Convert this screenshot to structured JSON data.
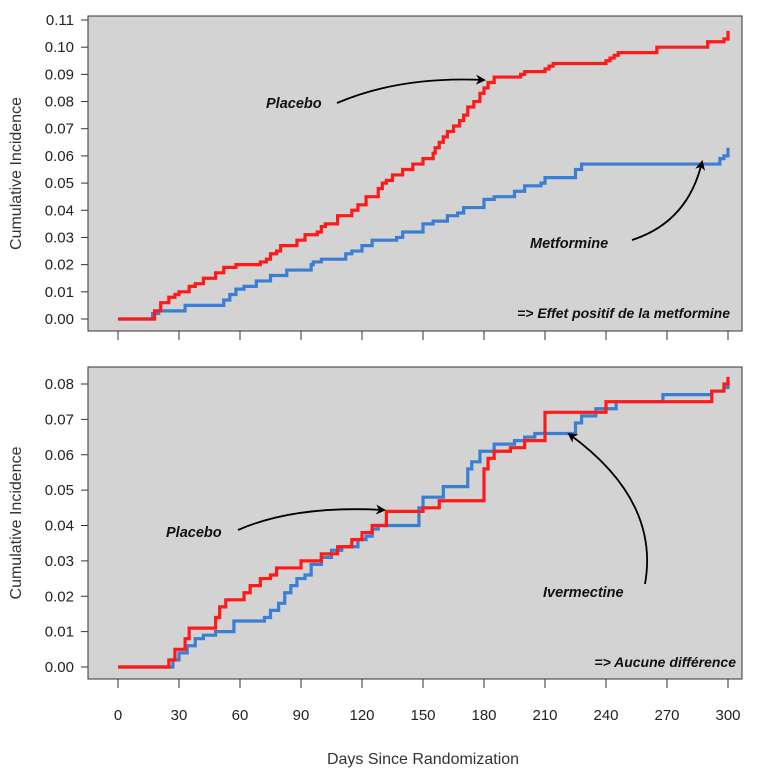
{
  "chart_data": [
    {
      "type": "line",
      "step": true,
      "ylabel": "Cumulative Incidence",
      "xlabel": "",
      "xlim": [
        0,
        300
      ],
      "ylim": [
        0,
        0.11
      ],
      "yticks": [
        "0.00",
        "0.01",
        "0.02",
        "0.03",
        "0.04",
        "0.05",
        "0.06",
        "0.07",
        "0.08",
        "0.09",
        "0.10",
        "0.11"
      ],
      "xticks": [
        0,
        30,
        60,
        90,
        120,
        150,
        180,
        210,
        240,
        270,
        300
      ],
      "xtick_labels_shown": false,
      "background": "#d3d3d3",
      "series": [
        {
          "name": "Placebo",
          "color": "#ff1a1a",
          "x": [
            0,
            18,
            21,
            25,
            28,
            30,
            35,
            38,
            42,
            48,
            52,
            58,
            70,
            73,
            75,
            78,
            80,
            88,
            92,
            98,
            100,
            102,
            108,
            115,
            118,
            120,
            122,
            128,
            130,
            132,
            135,
            140,
            145,
            150,
            155,
            156,
            158,
            160,
            162,
            165,
            168,
            170,
            172,
            175,
            178,
            180,
            182,
            185,
            195,
            198,
            200,
            210,
            212,
            214,
            240,
            242,
            244,
            246,
            265,
            290,
            298,
            300
          ],
          "y": [
            0,
            0.003,
            0.006,
            0.008,
            0.009,
            0.01,
            0.012,
            0.013,
            0.015,
            0.017,
            0.019,
            0.02,
            0.021,
            0.022,
            0.024,
            0.025,
            0.027,
            0.029,
            0.031,
            0.032,
            0.034,
            0.035,
            0.038,
            0.04,
            0.042,
            0.042,
            0.045,
            0.048,
            0.05,
            0.051,
            0.053,
            0.055,
            0.057,
            0.059,
            0.061,
            0.063,
            0.065,
            0.067,
            0.069,
            0.071,
            0.073,
            0.075,
            0.078,
            0.08,
            0.083,
            0.085,
            0.087,
            0.089,
            0.089,
            0.09,
            0.091,
            0.092,
            0.093,
            0.094,
            0.095,
            0.096,
            0.097,
            0.098,
            0.1,
            0.102,
            0.103,
            0.106
          ]
        },
        {
          "name": "Metformine",
          "color": "#3a7fd5",
          "x": [
            0,
            17,
            20,
            33,
            52,
            55,
            58,
            62,
            68,
            75,
            83,
            95,
            96,
            100,
            112,
            115,
            120,
            125,
            137,
            140,
            150,
            155,
            162,
            167,
            170,
            180,
            185,
            195,
            200,
            208,
            210,
            225,
            228,
            296,
            298,
            300
          ],
          "y": [
            0,
            0.002,
            0.003,
            0.005,
            0.007,
            0.009,
            0.011,
            0.012,
            0.014,
            0.016,
            0.018,
            0.02,
            0.021,
            0.022,
            0.024,
            0.025,
            0.027,
            0.029,
            0.03,
            0.032,
            0.035,
            0.036,
            0.038,
            0.039,
            0.041,
            0.044,
            0.045,
            0.047,
            0.049,
            0.05,
            0.052,
            0.055,
            0.057,
            0.059,
            0.06,
            0.063
          ]
        }
      ],
      "annotations": [
        {
          "text": "Placebo",
          "target": [
            182,
            0.088
          ]
        },
        {
          "text": "Metformine",
          "target": [
            288,
            0.059
          ]
        }
      ],
      "conclusion": "=> Effet positif de la metformine"
    },
    {
      "type": "line",
      "step": true,
      "ylabel": "Cumulative Incidence",
      "xlabel": "Days Since Randomization",
      "xlim": [
        0,
        300
      ],
      "ylim": [
        0,
        0.08
      ],
      "yticks": [
        "0.00",
        "0.01",
        "0.02",
        "0.03",
        "0.04",
        "0.05",
        "0.06",
        "0.07",
        "0.08"
      ],
      "xticks": [
        0,
        30,
        60,
        90,
        120,
        150,
        180,
        210,
        240,
        270,
        300
      ],
      "xtick_labels_shown": true,
      "background": "#d3d3d3",
      "series": [
        {
          "name": "Placebo",
          "color": "#ff1a1a",
          "x": [
            0,
            25,
            28,
            33,
            35,
            40,
            48,
            50,
            53,
            58,
            62,
            65,
            70,
            75,
            78,
            82,
            90,
            95,
            100,
            108,
            112,
            115,
            120,
            125,
            132,
            148,
            150,
            158,
            178,
            180,
            182,
            185,
            193,
            200,
            206,
            210,
            222,
            240,
            245,
            252,
            268,
            292,
            298,
            300
          ],
          "y": [
            0,
            0.002,
            0.005,
            0.008,
            0.011,
            0.011,
            0.014,
            0.017,
            0.019,
            0.019,
            0.021,
            0.023,
            0.025,
            0.026,
            0.028,
            0.028,
            0.03,
            0.03,
            0.032,
            0.034,
            0.034,
            0.036,
            0.038,
            0.04,
            0.044,
            0.044,
            0.045,
            0.047,
            0.047,
            0.056,
            0.059,
            0.061,
            0.062,
            0.064,
            0.064,
            0.072,
            0.072,
            0.075,
            0.075,
            0.075,
            0.075,
            0.078,
            0.08,
            0.082
          ]
        },
        {
          "name": "Ivermectine",
          "color": "#3a7fd5",
          "x": [
            0,
            27,
            30,
            34,
            38,
            42,
            45,
            48,
            52,
            57,
            62,
            68,
            72,
            75,
            79,
            82,
            85,
            88,
            92,
            95,
            100,
            105,
            110,
            118,
            122,
            125,
            128,
            130,
            148,
            150,
            153,
            160,
            172,
            174,
            178,
            185,
            195,
            200,
            205,
            212,
            225,
            228,
            235,
            245,
            255,
            268,
            292,
            298,
            300
          ],
          "y": [
            0,
            0.002,
            0.004,
            0.006,
            0.008,
            0.009,
            0.009,
            0.01,
            0.01,
            0.013,
            0.013,
            0.013,
            0.014,
            0.016,
            0.018,
            0.021,
            0.023,
            0.025,
            0.026,
            0.029,
            0.031,
            0.033,
            0.034,
            0.036,
            0.037,
            0.039,
            0.04,
            0.04,
            0.045,
            0.048,
            0.048,
            0.051,
            0.056,
            0.058,
            0.061,
            0.063,
            0.064,
            0.065,
            0.066,
            0.066,
            0.069,
            0.071,
            0.073,
            0.075,
            0.075,
            0.077,
            0.078,
            0.079,
            0.081
          ]
        }
      ],
      "annotations": [
        {
          "text": "Placebo",
          "target": [
            131,
            0.044
          ]
        },
        {
          "text": "Ivermectine",
          "target": [
            222,
            0.066
          ]
        }
      ],
      "conclusion": "=> Aucune différence"
    }
  ]
}
